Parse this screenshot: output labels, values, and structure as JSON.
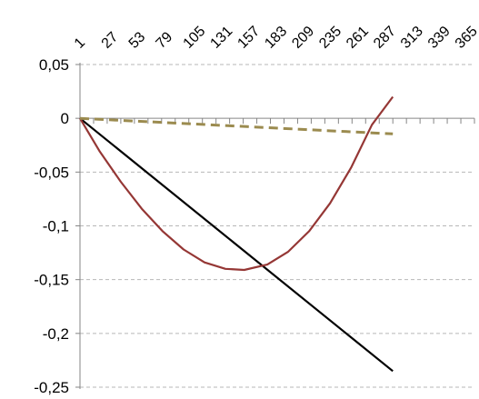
{
  "chart_data": {
    "type": "line",
    "title": "",
    "xlabel": "",
    "ylabel": "",
    "x_tick_labels": [
      "1",
      "27",
      "53",
      "79",
      "105",
      "131",
      "157",
      "183",
      "209",
      "235",
      "261",
      "287",
      "313",
      "339",
      "365"
    ],
    "y_tick_labels": [
      "0,05",
      "0",
      "-0,05",
      "-0,1",
      "-0,15",
      "-0,2",
      "-0,25"
    ],
    "y_tick_values": [
      0.05,
      0,
      -0.05,
      -0.1,
      -0.15,
      -0.2,
      -0.25
    ],
    "xlim": [
      1,
      378
    ],
    "ylim": [
      -0.25,
      0.05
    ],
    "grid": "horizontal dashed",
    "legend": "none",
    "series": [
      {
        "color": "#000000",
        "dash": "solid",
        "x": [
          1,
          300
        ],
        "values": [
          0,
          -0.235
        ]
      },
      {
        "color": "#953735",
        "dash": "solid",
        "x": [
          1,
          20,
          40,
          60,
          80,
          100,
          120,
          140,
          158,
          180,
          200,
          220,
          240,
          260,
          280,
          300
        ],
        "values": [
          0,
          -0.031,
          -0.059,
          -0.084,
          -0.105,
          -0.122,
          -0.134,
          -0.14,
          -0.141,
          -0.136,
          -0.124,
          -0.105,
          -0.079,
          -0.046,
          -0.006,
          0.02
        ]
      },
      {
        "color": "#9b8b4f",
        "dash": "dashed",
        "x": [
          1,
          300
        ],
        "values": [
          0,
          -0.0145
        ]
      }
    ]
  }
}
